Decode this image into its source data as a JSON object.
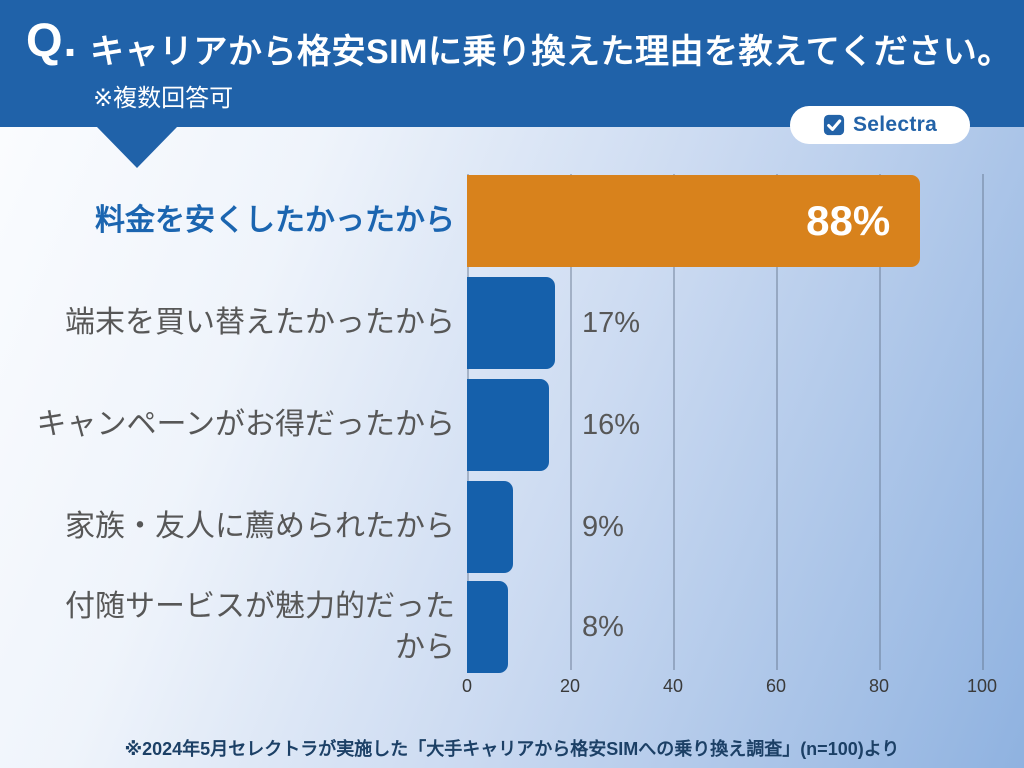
{
  "header": {
    "q_prefix": "Q.",
    "title": "キャリアから格安SIMに乗り換えた理由を教えてください。",
    "note": "※複数回答可"
  },
  "brand": {
    "name": "Selectra",
    "icon": "checkbox-check-icon"
  },
  "chart_data": {
    "type": "bar",
    "orientation": "horizontal",
    "title": "キャリアから格安SIMに乗り換えた理由を教えてください。",
    "subtitle": "※複数回答可",
    "categories": [
      "料金を安くしたかったから",
      "端末を買い替えたかったから",
      "キャンペーンがお得だったから",
      "家族・友人に薦められたから",
      "付随サービスが魅力的だった\nから"
    ],
    "values": [
      88,
      17,
      16,
      9,
      8
    ],
    "value_labels": [
      "88%",
      "17%",
      "16%",
      "9%",
      "8%"
    ],
    "xlabel": "",
    "ylabel": "",
    "xlim": [
      0,
      100
    ],
    "x_tick_labels": [
      "0",
      "20",
      "40",
      "60",
      "80",
      "100"
    ],
    "grid": "vertical",
    "legend": false,
    "highlight_index": 0,
    "highlight_color": "#d8821c",
    "bar_color": "#1560ab"
  },
  "footer": {
    "source_note": "※2024年5月セレクトラが実施した「大手キャリアから格安SIMへの乗り換え調査」(n=100)より"
  },
  "colors": {
    "header_blue": "#2062a9",
    "bar_blue": "#1560ab",
    "bar_orange": "#d8821c",
    "category_highlight_blue": "#1b65b0",
    "text_gray": "#575757",
    "footer_navy": "#1c4066",
    "brand_blue": "#2363a8",
    "background_gradient": [
      "#fcfdff",
      "#8fb2e0"
    ]
  }
}
